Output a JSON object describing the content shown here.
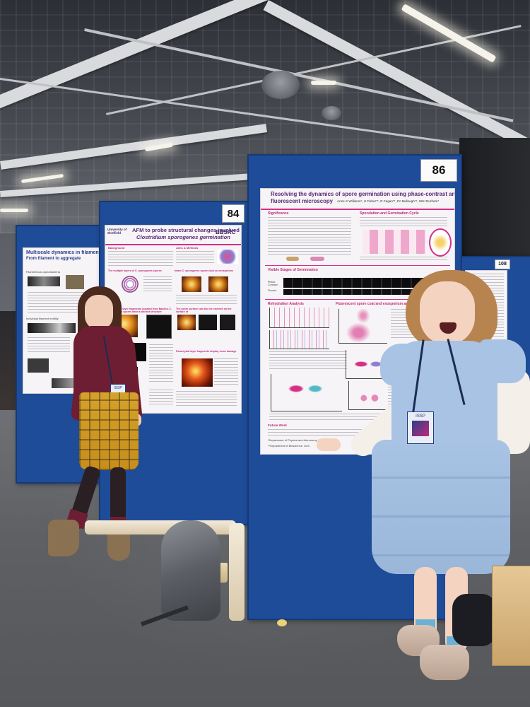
{
  "scene": {
    "description_colors": {
      "board_blue": "#1e4c98",
      "poster_accent": "#c0287a",
      "poster_title_purple": "#5b2a7a"
    }
  },
  "boards": {
    "left": {
      "poster_title": "Multiscale dynamics in filamentous cyanoba",
      "poster_subtitle": "From filament to aggregate",
      "poster_heading1": "Filamentous cyanobacteria",
      "poster_heading2": "Individual filament motility"
    },
    "middle": {
      "number": "84",
      "poster_title_line1": "AFM to probe structural changes involved in",
      "poster_title_line2": "Clostridium sporogenes germination",
      "logo_text": "University of Sheffield",
      "funder": "BBSRC",
      "headings": [
        "Background",
        "Aims & Methods",
        "The multiple layers of C. sporogenes spores",
        "Intact C. sporogenes spores lack an exosporium",
        "Paracrystal layer fragments isolated from Bacillus C. sporogenes spores have a distinct structure",
        "The spore surface can also be oriented on the surface of",
        "Paracrystal layer fragments display some damage"
      ]
    },
    "right": {
      "number": "86",
      "poster_title_line1": "Resolving the dynamics of spore germination using phase-contrast and",
      "poster_title_line2": "fluorescent microscopy",
      "authors": "Anne S Williams*, H Fisher**, R Fagan**, PA Bullough**, WHI Durham*",
      "headings": {
        "significance": "Significance",
        "cycle": "Sporulation and Germination Cycle",
        "stages": "Visible Stages of Germination",
        "rehydration": "Rehydration Analysis",
        "fluorescent": "Fluorescent spore coat and exosporium analysis",
        "future": "Future Work"
      },
      "stage_labels": [
        "Phase-Contrast",
        "Fluores."
      ],
      "affiliations": [
        "*Department of Physics and Astronomy, UoS",
        "**Department of Bioscience, UoS"
      ],
      "logo_text": "University of Sheffield"
    },
    "far_right": {
      "number": "108"
    }
  },
  "badges": {
    "left_lanyard": "ISSP",
    "right_lanyard": "ISSP"
  }
}
